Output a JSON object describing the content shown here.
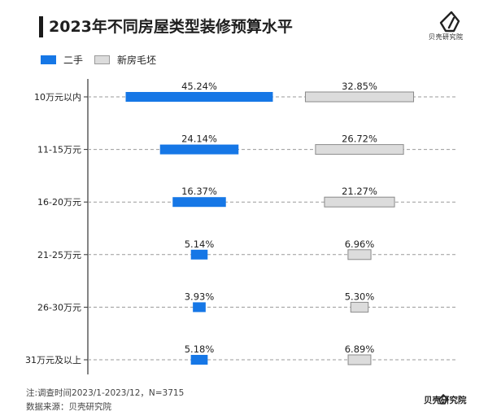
{
  "title": "2023年不同房屋类型装修预算水平",
  "brand": {
    "name": "贝壳研究院"
  },
  "legend": [
    {
      "label": "二手",
      "color": "#1677e6"
    },
    {
      "label": "新房毛坯",
      "color": "#dcdcdc"
    }
  ],
  "chart_data": {
    "type": "bar",
    "title": "2023年不同房屋类型装修预算水平",
    "orientation": "horizontal-diverging-from-center",
    "grid": true,
    "categories": [
      "10万元以内",
      "11-15万元",
      "16-20万元",
      "21-25万元",
      "26-30万元",
      "31万元及以上"
    ],
    "series": [
      {
        "name": "二手",
        "color": "#1677e6",
        "values": [
          45.24,
          24.14,
          16.37,
          5.14,
          3.93,
          5.18
        ],
        "labels": [
          "45.24%",
          "24.14%",
          "16.37%",
          "5.14%",
          "3.93%",
          "5.18%"
        ]
      },
      {
        "name": "新房毛坯",
        "color": "#dcdcdc",
        "values": [
          32.85,
          26.72,
          21.27,
          6.96,
          5.3,
          6.89
        ],
        "labels": [
          "32.85%",
          "26.72%",
          "21.27%",
          "6.96%",
          "5.30%",
          "6.89%"
        ]
      }
    ],
    "unit": "%"
  },
  "notes": {
    "note": "注:调查时间2023/1-2023/12，N=3715",
    "source": "数据来源：贝壳研究院"
  }
}
